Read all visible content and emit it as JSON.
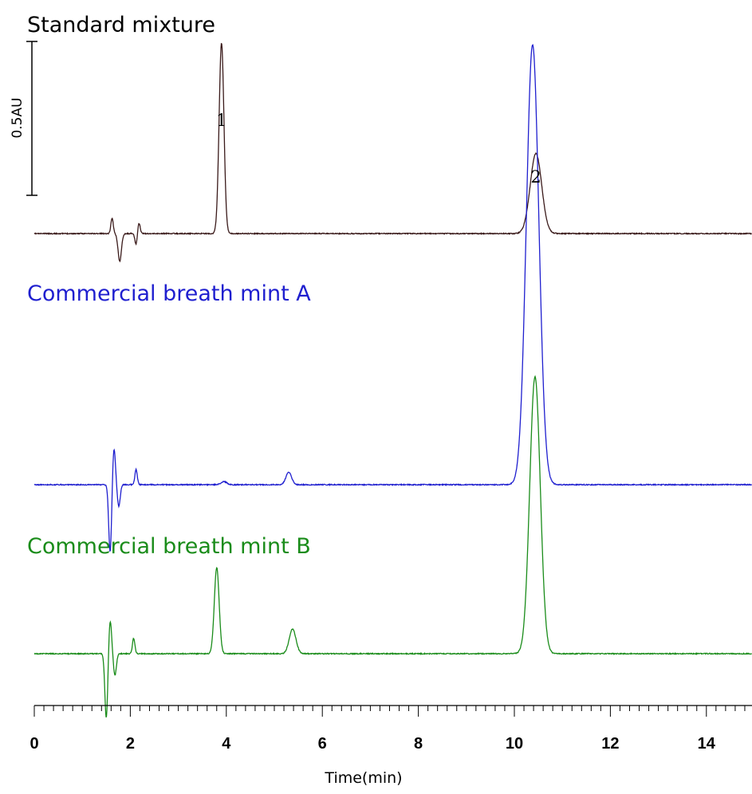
{
  "chart_data": {
    "type": "line",
    "title": "",
    "xlabel": "Time(min)",
    "ylabel": "",
    "xlim": [
      0,
      15
    ],
    "x_ticks": [
      "0",
      "2",
      "4",
      "6",
      "8",
      "10",
      "12",
      "14"
    ],
    "x_minor_tick_step": 0.2,
    "scale_bar": {
      "label": "0.5AU",
      "value_au": 0.5
    },
    "grid": false,
    "legend": "none",
    "series": [
      {
        "name": "Standard mixture",
        "color": "#000000",
        "label_color": "#000000",
        "line_color": "#3a1a1a",
        "baseline_au": 0,
        "peaks": [
          {
            "t": 1.62,
            "h": 0.05,
            "w": 0.025
          },
          {
            "t": 1.78,
            "h": -0.09,
            "w": 0.035
          },
          {
            "t": 2.12,
            "h": -0.035,
            "w": 0.025
          },
          {
            "t": 2.18,
            "h": 0.035,
            "w": 0.025
          },
          {
            "t": 3.9,
            "h": 0.62,
            "w": 0.05
          },
          {
            "t": 10.45,
            "h": 0.26,
            "w": 0.12
          }
        ],
        "peak_labels": [
          {
            "text": "1",
            "t": 3.9
          },
          {
            "text": "2",
            "t": 10.45
          }
        ]
      },
      {
        "name": "Commercial breath mint A",
        "color": "#1f1fcf",
        "label_color": "#1f1fcf",
        "line_color": "#1f1fcf",
        "baseline_au": 0,
        "peaks": [
          {
            "t": 1.58,
            "h": -0.22,
            "w": 0.03
          },
          {
            "t": 1.66,
            "h": 0.12,
            "w": 0.03
          },
          {
            "t": 1.76,
            "h": -0.07,
            "w": 0.03
          },
          {
            "t": 2.12,
            "h": 0.05,
            "w": 0.025
          },
          {
            "t": 3.95,
            "h": 0.01,
            "w": 0.06
          },
          {
            "t": 5.3,
            "h": 0.04,
            "w": 0.06
          },
          {
            "t": 10.38,
            "h": 1.43,
            "w": 0.13
          }
        ],
        "peak_labels": []
      },
      {
        "name": "Commercial breath mint B",
        "color": "#1a8c1a",
        "label_color": "#1a8c1a",
        "line_color": "#1a8c1a",
        "baseline_au": 0,
        "peaks": [
          {
            "t": 1.5,
            "h": -0.21,
            "w": 0.03
          },
          {
            "t": 1.58,
            "h": 0.11,
            "w": 0.03
          },
          {
            "t": 1.68,
            "h": -0.07,
            "w": 0.03
          },
          {
            "t": 2.07,
            "h": 0.05,
            "w": 0.025
          },
          {
            "t": 3.8,
            "h": 0.28,
            "w": 0.05
          },
          {
            "t": 5.38,
            "h": 0.08,
            "w": 0.07
          },
          {
            "t": 10.43,
            "h": 0.9,
            "w": 0.11
          }
        ],
        "peak_labels": []
      }
    ]
  }
}
